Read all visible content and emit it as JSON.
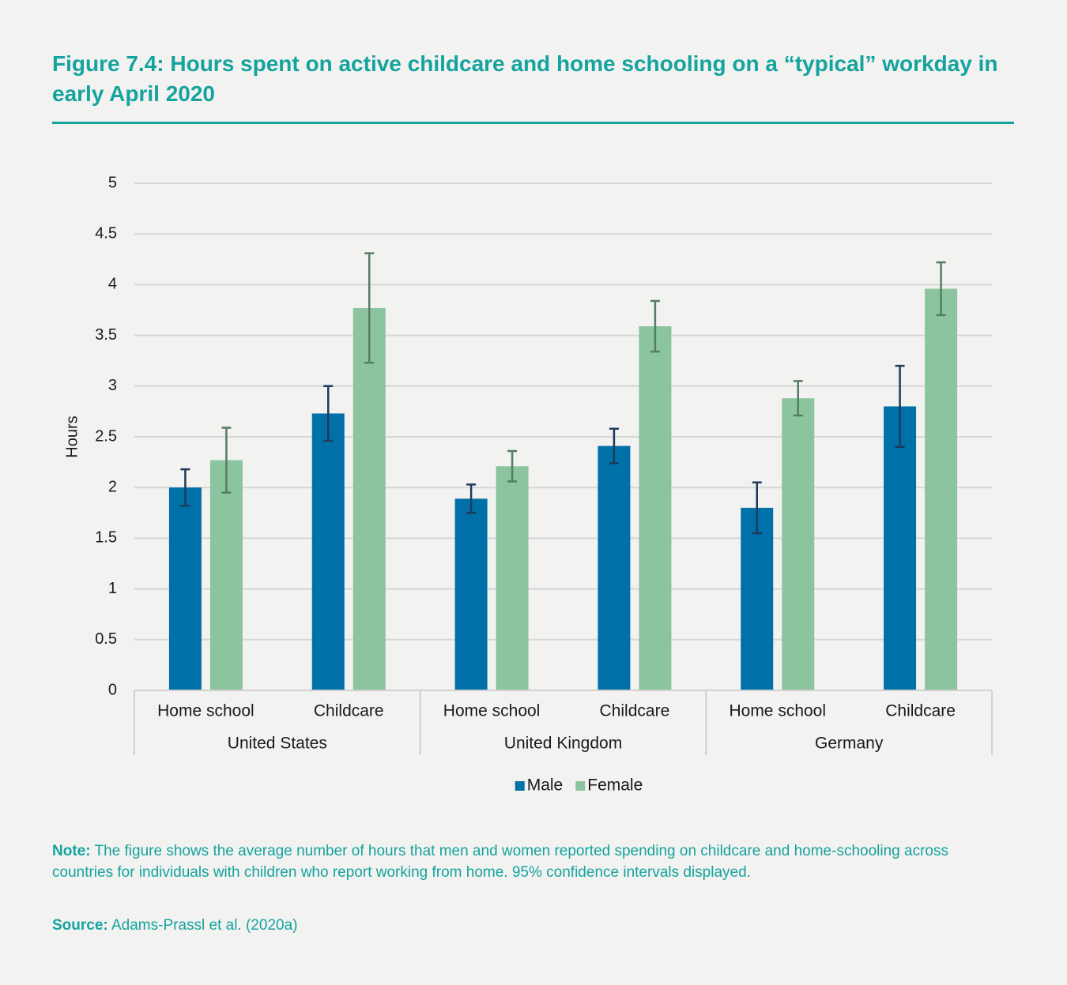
{
  "chart_data": {
    "type": "bar",
    "title": "Figure 7.4: Hours spent on active childcare and home schooling on a “typical” workday in early April 2020",
    "y_label": "Hours",
    "categories": [
      "Home school",
      "Childcare",
      "Home school",
      "Childcare",
      "Home school",
      "Childcare"
    ],
    "groups": [
      "United States",
      "United Kingdom",
      "Germany"
    ],
    "series": [
      {
        "name": "Male",
        "color": "#0070a8",
        "error_color": "#1f3a5c",
        "values": [
          2.0,
          2.73,
          1.89,
          2.41,
          1.8,
          2.8
        ],
        "errors": [
          0.18,
          0.27,
          0.14,
          0.17,
          0.25,
          0.4
        ]
      },
      {
        "name": "Female",
        "color": "#8cc4a0",
        "error_color": "#557d63",
        "values": [
          2.27,
          3.77,
          2.21,
          3.59,
          2.88,
          3.96
        ],
        "errors": [
          0.32,
          0.54,
          0.15,
          0.25,
          0.17,
          0.26
        ]
      }
    ],
    "ylim": [
      0,
      5
    ],
    "yticks": [
      0,
      0.5,
      1,
      1.5,
      2,
      2.5,
      3,
      3.5,
      4,
      4.5,
      5
    ],
    "grid": true,
    "legend": "bottom"
  },
  "note": {
    "label": "Note:",
    "text": "The figure shows the average number of hours that men and women reported spending on childcare and home-schooling across countries for individuals with children who report working from home. 95% confidence intervals displayed."
  },
  "source": {
    "label": "Source:",
    "text": "Adams-Prassl et al. (2020a)"
  }
}
